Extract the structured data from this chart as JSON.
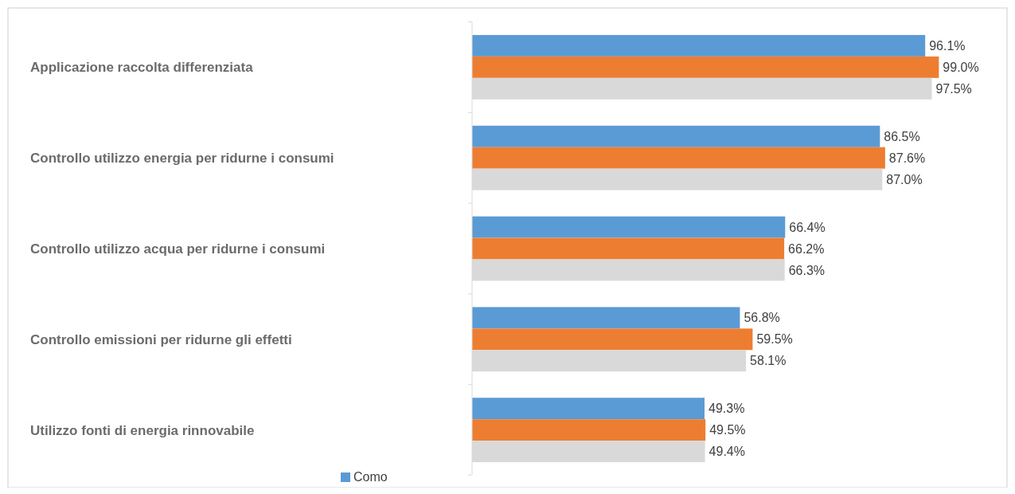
{
  "chart_data": {
    "type": "bar",
    "orientation": "horizontal",
    "categories": [
      "Applicazione raccolta differenziata",
      "Controllo utilizzo energia per ridurne i consumi",
      "Controllo utilizzo acqua per ridurne i consumi",
      "Controllo emissioni per ridurne gli effetti",
      "Utilizzo fonti di energia rinnovabile"
    ],
    "series": [
      {
        "name": "Como",
        "color": "#5b9bd5",
        "values": [
          96.1,
          86.5,
          66.4,
          56.8,
          49.3
        ],
        "value_labels": [
          "96.1%",
          "86.5%",
          "66.4%",
          "56.8%",
          "49.3%"
        ]
      },
      {
        "color": "#ed7d31",
        "values": [
          99.0,
          87.6,
          66.2,
          59.5,
          49.5
        ],
        "value_labels": [
          "99.0%",
          "87.6%",
          "66.2%",
          "59.5%",
          "49.5%"
        ]
      },
      {
        "color": "#d9d9d9",
        "values": [
          97.5,
          87.0,
          66.3,
          58.1,
          49.4
        ],
        "value_labels": [
          "97.5%",
          "87.0%",
          "66.3%",
          "58.1%",
          "49.4%"
        ]
      }
    ],
    "legend": "bottom"
  }
}
